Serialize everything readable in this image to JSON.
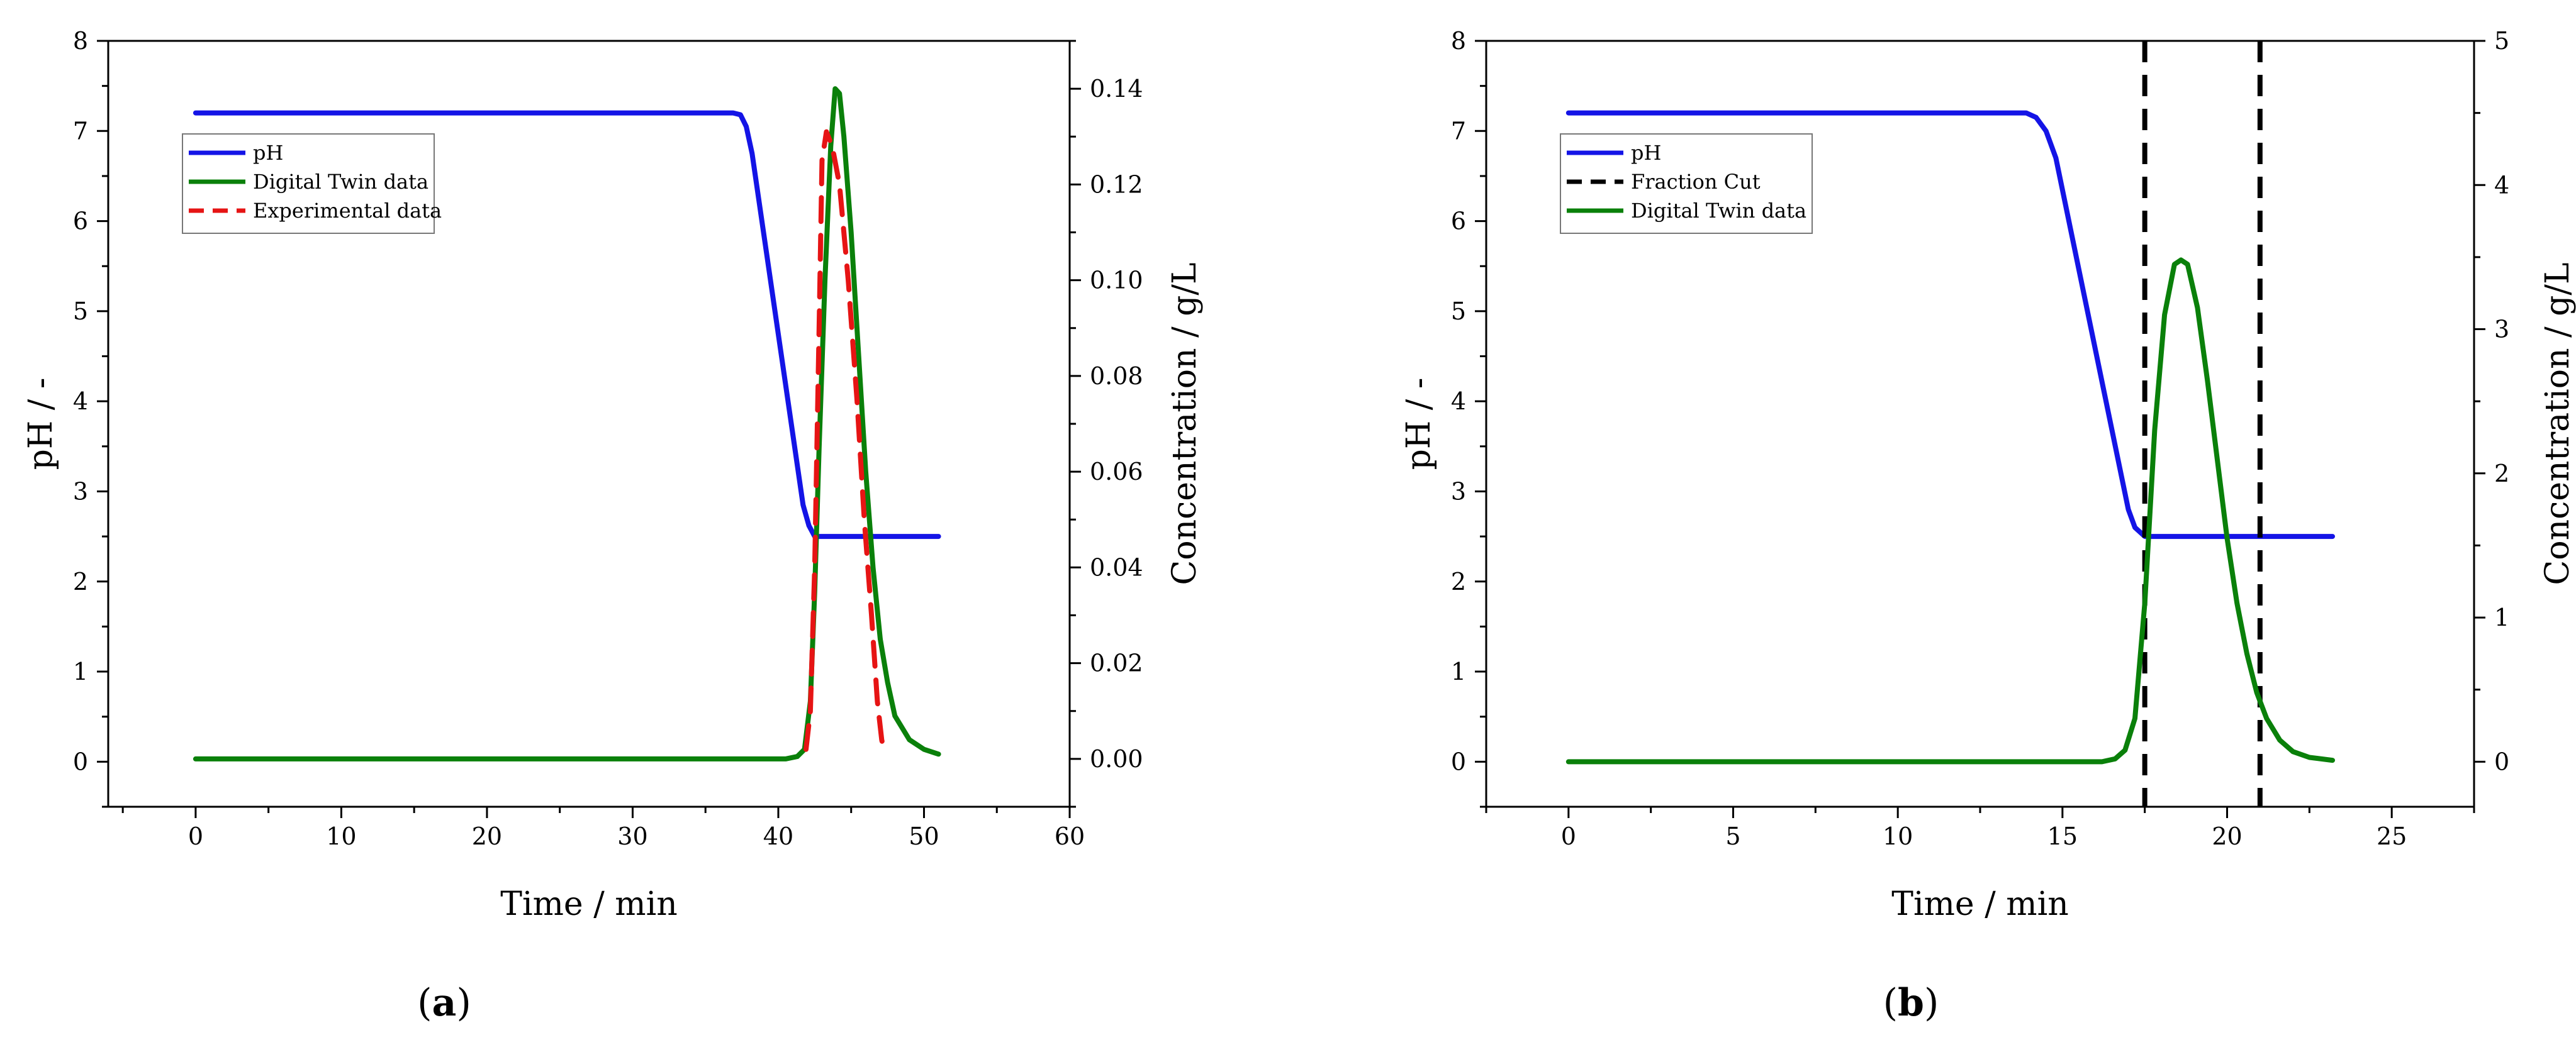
{
  "colors": {
    "ph": "#1414e6",
    "twin": "#0a800a",
    "exp": "#e61414",
    "cut": "#000000"
  },
  "chart_data": [
    {
      "type": "line",
      "panel_label_prefix": "(",
      "panel_label_letter": "a",
      "panel_label_suffix": ")",
      "xlabel": "Time / min",
      "ylabel": "pH / -",
      "y2label": "Concentration / g/L",
      "xlim": [
        -6,
        60
      ],
      "ylim": [
        -0.5,
        8
      ],
      "y2lim": [
        -0.01,
        0.15
      ],
      "xticks": [
        "0",
        "10",
        "20",
        "30",
        "40",
        "50",
        "60"
      ],
      "yticks": [
        "0",
        "1",
        "2",
        "3",
        "4",
        "5",
        "6",
        "7",
        "8"
      ],
      "y2ticks": [
        "0.00",
        "0.02",
        "0.04",
        "0.06",
        "0.08",
        "0.10",
        "0.12",
        "0.14"
      ],
      "legend_position": "upper-left",
      "series": [
        {
          "name": "pH",
          "key": "ph",
          "axis": "left",
          "style": "solid",
          "x": [
            0,
            36.9,
            37.4,
            37.8,
            38.2,
            41.7,
            42.1,
            42.5,
            51
          ],
          "y": [
            7.2,
            7.2,
            7.18,
            7.05,
            6.75,
            2.85,
            2.62,
            2.5,
            2.5
          ]
        },
        {
          "name": "Digital Twin data",
          "key": "twin",
          "axis": "right",
          "style": "solid",
          "x": [
            0,
            40.5,
            41.3,
            41.8,
            42.2,
            42.5,
            42.8,
            43.2,
            43.6,
            43.9,
            44.2,
            44.5,
            45,
            45.5,
            46,
            46.5,
            47,
            47.5,
            48,
            49,
            50,
            51
          ],
          "y": [
            0,
            0,
            0.0005,
            0.002,
            0.012,
            0.035,
            0.065,
            0.1,
            0.128,
            0.14,
            0.139,
            0.13,
            0.11,
            0.085,
            0.06,
            0.04,
            0.025,
            0.016,
            0.009,
            0.004,
            0.002,
            0.001
          ]
        },
        {
          "name": "Experimental data",
          "key": "exp",
          "axis": "right",
          "style": "dashed",
          "x": [
            41.9,
            42.2,
            42.5,
            42.8,
            43.0,
            43.3,
            43.7,
            44.2,
            44.8,
            45.4,
            45.9,
            46.4,
            46.8,
            47.1,
            47.3
          ],
          "y": [
            0.002,
            0.01,
            0.04,
            0.09,
            0.125,
            0.131,
            0.128,
            0.12,
            0.1,
            0.075,
            0.05,
            0.03,
            0.012,
            0.004,
            0.001
          ]
        }
      ]
    },
    {
      "type": "line",
      "panel_label_prefix": "(",
      "panel_label_letter": "b",
      "panel_label_suffix": ")",
      "xlabel": "Time / min",
      "ylabel": "pH / -",
      "y2label": "Concentration / g/L",
      "xlim": [
        -2.5,
        27.5
      ],
      "ylim": [
        -0.5,
        8
      ],
      "y2lim": [
        -0.3125,
        5
      ],
      "xticks": [
        "0",
        "5",
        "10",
        "15",
        "20",
        "25"
      ],
      "yticks": [
        "0",
        "1",
        "2",
        "3",
        "4",
        "5",
        "6",
        "7",
        "8"
      ],
      "y2ticks": [
        "0",
        "1",
        "2",
        "3",
        "4",
        "5"
      ],
      "legend_position": "upper-left",
      "series": [
        {
          "name": "pH",
          "key": "ph",
          "axis": "left",
          "style": "solid",
          "x": [
            0,
            13.9,
            14.2,
            14.5,
            14.8,
            17.0,
            17.2,
            17.5,
            23.2
          ],
          "y": [
            7.2,
            7.2,
            7.15,
            7.0,
            6.7,
            2.8,
            2.6,
            2.5,
            2.5
          ]
        },
        {
          "name": "Fraction Cut",
          "key": "cut",
          "axis": "left",
          "style": "dashed",
          "vlines": [
            17.5,
            21.0
          ]
        },
        {
          "name": "Digital Twin data",
          "key": "twin",
          "axis": "right",
          "style": "solid",
          "x": [
            0,
            16.2,
            16.6,
            16.9,
            17.2,
            17.5,
            17.8,
            18.1,
            18.4,
            18.6,
            18.8,
            19.1,
            19.4,
            19.7,
            20.0,
            20.3,
            20.6,
            20.9,
            21.2,
            21.6,
            22.0,
            22.5,
            23.2
          ],
          "y": [
            0,
            0,
            0.02,
            0.08,
            0.3,
            1.1,
            2.3,
            3.1,
            3.45,
            3.48,
            3.45,
            3.15,
            2.65,
            2.1,
            1.55,
            1.1,
            0.75,
            0.48,
            0.3,
            0.15,
            0.07,
            0.03,
            0.01
          ]
        }
      ]
    }
  ]
}
